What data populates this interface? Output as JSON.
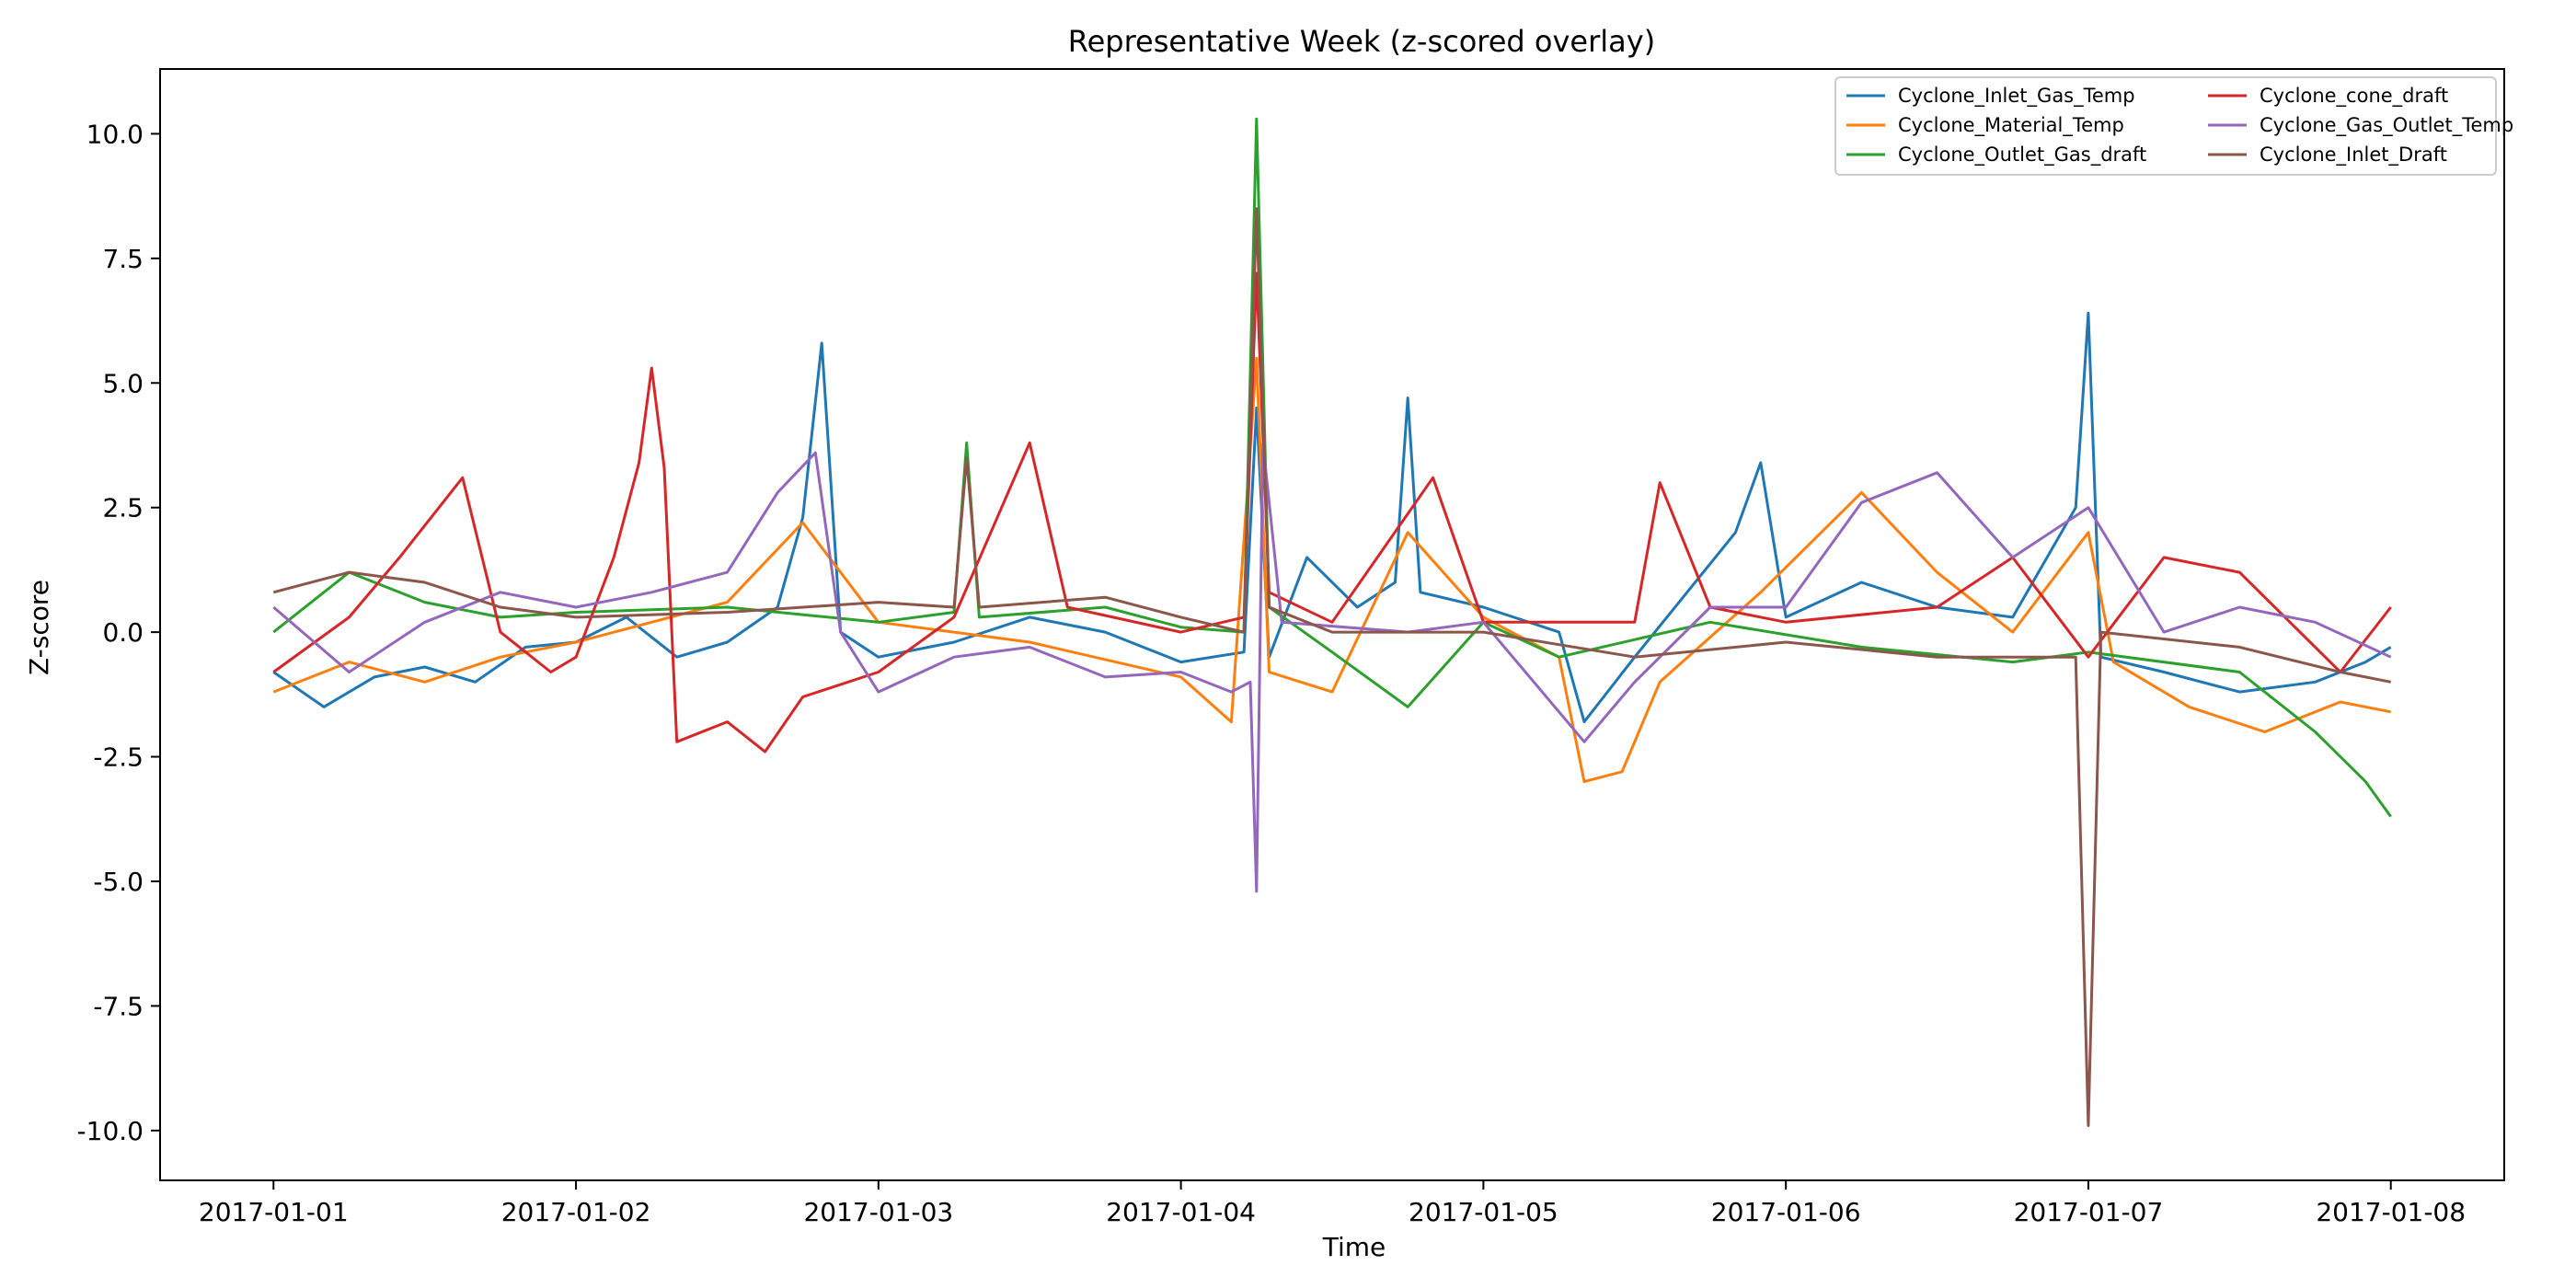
{
  "chart_data": {
    "type": "line",
    "title": "Representative Week (z-scored overlay)",
    "xlabel": "Time",
    "ylabel": "Z-score",
    "x_range": [
      "2016-12-31T15:00",
      "2017-01-08T09:00"
    ],
    "x_ticks": [
      "2017-01-01",
      "2017-01-02",
      "2017-01-03",
      "2017-01-04",
      "2017-01-05",
      "2017-01-06",
      "2017-01-07",
      "2017-01-08"
    ],
    "ylim": [
      -11,
      11.3
    ],
    "y_ticks": [
      "-10.0",
      "-7.5",
      "-5.0",
      "-2.5",
      "0.0",
      "2.5",
      "5.0",
      "7.5",
      "10.0"
    ],
    "y_tick_values": [
      -10,
      -7.5,
      -5,
      -2.5,
      0,
      2.5,
      5,
      7.5,
      10
    ],
    "grid": false,
    "legend_position": "top-right",
    "series": [
      {
        "name": "Cyclone_Inlet_Gas_Temp",
        "color": "#1f77b4",
        "points": [
          [
            "2017-01-01T00:00",
            -0.8
          ],
          [
            "2017-01-01T04:00",
            -1.5
          ],
          [
            "2017-01-01T08:00",
            -0.9
          ],
          [
            "2017-01-01T12:00",
            -0.7
          ],
          [
            "2017-01-01T16:00",
            -1.0
          ],
          [
            "2017-01-01T20:00",
            -0.3
          ],
          [
            "2017-01-02T00:00",
            -0.2
          ],
          [
            "2017-01-02T04:00",
            0.3
          ],
          [
            "2017-01-02T08:00",
            -0.5
          ],
          [
            "2017-01-02T12:00",
            -0.2
          ],
          [
            "2017-01-02T16:00",
            0.5
          ],
          [
            "2017-01-02T18:00",
            2.3
          ],
          [
            "2017-01-02T19:30",
            5.8
          ],
          [
            "2017-01-02T21:00",
            0.0
          ],
          [
            "2017-01-03T00:00",
            -0.5
          ],
          [
            "2017-01-03T06:00",
            -0.2
          ],
          [
            "2017-01-03T12:00",
            0.3
          ],
          [
            "2017-01-03T18:00",
            0.0
          ],
          [
            "2017-01-04T00:00",
            -0.6
          ],
          [
            "2017-01-04T05:00",
            -0.4
          ],
          [
            "2017-01-04T06:00",
            4.5
          ],
          [
            "2017-01-04T07:00",
            -0.5
          ],
          [
            "2017-01-04T10:00",
            1.5
          ],
          [
            "2017-01-04T14:00",
            0.5
          ],
          [
            "2017-01-04T17:00",
            1.0
          ],
          [
            "2017-01-04T18:00",
            4.7
          ],
          [
            "2017-01-04T19:00",
            0.8
          ],
          [
            "2017-01-05T00:00",
            0.5
          ],
          [
            "2017-01-05T06:00",
            0.0
          ],
          [
            "2017-01-05T08:00",
            -1.8
          ],
          [
            "2017-01-05T12:00",
            -0.5
          ],
          [
            "2017-01-05T20:00",
            2.0
          ],
          [
            "2017-01-05T22:00",
            3.4
          ],
          [
            "2017-01-06T00:00",
            0.3
          ],
          [
            "2017-01-06T06:00",
            1.0
          ],
          [
            "2017-01-06T12:00",
            0.5
          ],
          [
            "2017-01-06T18:00",
            0.3
          ],
          [
            "2017-01-06T23:00",
            2.5
          ],
          [
            "2017-01-07T00:00",
            6.4
          ],
          [
            "2017-01-07T01:00",
            -0.5
          ],
          [
            "2017-01-07T06:00",
            -0.8
          ],
          [
            "2017-01-07T12:00",
            -1.2
          ],
          [
            "2017-01-07T18:00",
            -1.0
          ],
          [
            "2017-01-07T22:00",
            -0.6
          ],
          [
            "2017-01-08T00:00",
            -0.3
          ]
        ]
      },
      {
        "name": "Cyclone_Material_Temp",
        "color": "#ff7f0e",
        "points": [
          [
            "2017-01-01T00:00",
            -1.2
          ],
          [
            "2017-01-01T06:00",
            -0.6
          ],
          [
            "2017-01-01T12:00",
            -1.0
          ],
          [
            "2017-01-01T18:00",
            -0.5
          ],
          [
            "2017-01-02T00:00",
            -0.2
          ],
          [
            "2017-01-02T06:00",
            0.2
          ],
          [
            "2017-01-02T12:00",
            0.6
          ],
          [
            "2017-01-02T18:00",
            2.2
          ],
          [
            "2017-01-03T00:00",
            0.2
          ],
          [
            "2017-01-03T12:00",
            -0.2
          ],
          [
            "2017-01-04T00:00",
            -0.9
          ],
          [
            "2017-01-04T04:00",
            -1.8
          ],
          [
            "2017-01-04T06:00",
            5.5
          ],
          [
            "2017-01-04T07:00",
            -0.8
          ],
          [
            "2017-01-04T12:00",
            -1.2
          ],
          [
            "2017-01-04T18:00",
            2.0
          ],
          [
            "2017-01-05T00:00",
            0.3
          ],
          [
            "2017-01-05T06:00",
            -0.5
          ],
          [
            "2017-01-05T08:00",
            -3.0
          ],
          [
            "2017-01-05T11:00",
            -2.8
          ],
          [
            "2017-01-05T14:00",
            -1.0
          ],
          [
            "2017-01-05T22:00",
            0.8
          ],
          [
            "2017-01-06T06:00",
            2.8
          ],
          [
            "2017-01-06T12:00",
            1.2
          ],
          [
            "2017-01-06T18:00",
            0.0
          ],
          [
            "2017-01-07T00:00",
            2.0
          ],
          [
            "2017-01-07T02:00",
            -0.6
          ],
          [
            "2017-01-07T08:00",
            -1.5
          ],
          [
            "2017-01-07T14:00",
            -2.0
          ],
          [
            "2017-01-07T20:00",
            -1.4
          ],
          [
            "2017-01-08T00:00",
            -1.6
          ]
        ]
      },
      {
        "name": "Cyclone_Outlet_Gas_draft",
        "color": "#2ca02c",
        "points": [
          [
            "2017-01-01T00:00",
            0.0
          ],
          [
            "2017-01-01T06:00",
            1.2
          ],
          [
            "2017-01-01T12:00",
            0.6
          ],
          [
            "2017-01-01T18:00",
            0.3
          ],
          [
            "2017-01-02T00:00",
            0.4
          ],
          [
            "2017-01-02T12:00",
            0.5
          ],
          [
            "2017-01-03T00:00",
            0.2
          ],
          [
            "2017-01-03T06:00",
            0.4
          ],
          [
            "2017-01-03T07:00",
            3.8
          ],
          [
            "2017-01-03T08:00",
            0.3
          ],
          [
            "2017-01-03T18:00",
            0.5
          ],
          [
            "2017-01-04T00:00",
            0.1
          ],
          [
            "2017-01-04T05:00",
            0.0
          ],
          [
            "2017-01-04T06:00",
            10.3
          ],
          [
            "2017-01-04T07:00",
            0.5
          ],
          [
            "2017-01-04T12:00",
            -0.4
          ],
          [
            "2017-01-04T18:00",
            -1.5
          ],
          [
            "2017-01-05T00:00",
            0.2
          ],
          [
            "2017-01-05T06:00",
            -0.5
          ],
          [
            "2017-01-05T18:00",
            0.2
          ],
          [
            "2017-01-06T06:00",
            -0.3
          ],
          [
            "2017-01-06T18:00",
            -0.6
          ],
          [
            "2017-01-07T00:00",
            -0.4
          ],
          [
            "2017-01-07T12:00",
            -0.8
          ],
          [
            "2017-01-07T18:00",
            -2.0
          ],
          [
            "2017-01-07T22:00",
            -3.0
          ],
          [
            "2017-01-08T00:00",
            -3.7
          ]
        ]
      },
      {
        "name": "Cyclone_cone_draft",
        "color": "#d62728",
        "points": [
          [
            "2017-01-01T00:00",
            -0.8
          ],
          [
            "2017-01-01T06:00",
            0.3
          ],
          [
            "2017-01-01T10:00",
            1.5
          ],
          [
            "2017-01-01T15:00",
            3.1
          ],
          [
            "2017-01-01T18:00",
            0.0
          ],
          [
            "2017-01-01T22:00",
            -0.8
          ],
          [
            "2017-01-02T00:00",
            -0.5
          ],
          [
            "2017-01-02T03:00",
            1.5
          ],
          [
            "2017-01-02T05:00",
            3.4
          ],
          [
            "2017-01-02T06:00",
            5.3
          ],
          [
            "2017-01-02T07:00",
            3.3
          ],
          [
            "2017-01-02T08:00",
            -2.2
          ],
          [
            "2017-01-02T12:00",
            -1.8
          ],
          [
            "2017-01-02T15:00",
            -2.4
          ],
          [
            "2017-01-02T18:00",
            -1.3
          ],
          [
            "2017-01-03T00:00",
            -0.8
          ],
          [
            "2017-01-03T06:00",
            0.3
          ],
          [
            "2017-01-03T12:00",
            3.8
          ],
          [
            "2017-01-03T15:00",
            0.5
          ],
          [
            "2017-01-04T00:00",
            0.0
          ],
          [
            "2017-01-04T05:00",
            0.3
          ],
          [
            "2017-01-04T06:00",
            7.2
          ],
          [
            "2017-01-04T07:00",
            0.8
          ],
          [
            "2017-01-04T12:00",
            0.2
          ],
          [
            "2017-01-04T20:00",
            3.1
          ],
          [
            "2017-01-05T00:00",
            0.2
          ],
          [
            "2017-01-05T12:00",
            0.2
          ],
          [
            "2017-01-05T14:00",
            3.0
          ],
          [
            "2017-01-05T18:00",
            0.5
          ],
          [
            "2017-01-06T00:00",
            0.2
          ],
          [
            "2017-01-06T12:00",
            0.5
          ],
          [
            "2017-01-06T18:00",
            1.5
          ],
          [
            "2017-01-07T00:00",
            -0.5
          ],
          [
            "2017-01-07T06:00",
            1.5
          ],
          [
            "2017-01-07T12:00",
            1.2
          ],
          [
            "2017-01-07T20:00",
            -0.8
          ],
          [
            "2017-01-08T00:00",
            0.5
          ]
        ]
      },
      {
        "name": "Cyclone_Gas_Outlet_Temp",
        "color": "#9467bd",
        "points": [
          [
            "2017-01-01T00:00",
            0.5
          ],
          [
            "2017-01-01T06:00",
            -0.8
          ],
          [
            "2017-01-01T12:00",
            0.2
          ],
          [
            "2017-01-01T18:00",
            0.8
          ],
          [
            "2017-01-02T00:00",
            0.5
          ],
          [
            "2017-01-02T06:00",
            0.8
          ],
          [
            "2017-01-02T12:00",
            1.2
          ],
          [
            "2017-01-02T16:00",
            2.8
          ],
          [
            "2017-01-02T19:00",
            3.6
          ],
          [
            "2017-01-02T21:00",
            0.0
          ],
          [
            "2017-01-03T00:00",
            -1.2
          ],
          [
            "2017-01-03T06:00",
            -0.5
          ],
          [
            "2017-01-03T12:00",
            -0.3
          ],
          [
            "2017-01-03T18:00",
            -0.9
          ],
          [
            "2017-01-04T00:00",
            -0.8
          ],
          [
            "2017-01-04T04:00",
            -1.2
          ],
          [
            "2017-01-04T05:30",
            -1.0
          ],
          [
            "2017-01-04T06:00",
            -5.2
          ],
          [
            "2017-01-04T06:30",
            3.8
          ],
          [
            "2017-01-04T08:00",
            0.2
          ],
          [
            "2017-01-04T18:00",
            0.0
          ],
          [
            "2017-01-05T00:00",
            0.2
          ],
          [
            "2017-01-05T08:00",
            -2.2
          ],
          [
            "2017-01-05T12:00",
            -1.0
          ],
          [
            "2017-01-05T18:00",
            0.5
          ],
          [
            "2017-01-06T00:00",
            0.5
          ],
          [
            "2017-01-06T06:00",
            2.6
          ],
          [
            "2017-01-06T12:00",
            3.2
          ],
          [
            "2017-01-06T18:00",
            1.5
          ],
          [
            "2017-01-07T00:00",
            2.5
          ],
          [
            "2017-01-07T06:00",
            0.0
          ],
          [
            "2017-01-07T12:00",
            0.5
          ],
          [
            "2017-01-07T18:00",
            0.2
          ],
          [
            "2017-01-08T00:00",
            -0.5
          ]
        ]
      },
      {
        "name": "Cyclone_Inlet_Draft",
        "color": "#8c564b",
        "points": [
          [
            "2017-01-01T00:00",
            0.8
          ],
          [
            "2017-01-01T06:00",
            1.2
          ],
          [
            "2017-01-01T12:00",
            1.0
          ],
          [
            "2017-01-01T18:00",
            0.5
          ],
          [
            "2017-01-02T00:00",
            0.3
          ],
          [
            "2017-01-02T12:00",
            0.4
          ],
          [
            "2017-01-03T00:00",
            0.6
          ],
          [
            "2017-01-03T06:00",
            0.5
          ],
          [
            "2017-01-03T07:00",
            3.5
          ],
          [
            "2017-01-03T08:00",
            0.5
          ],
          [
            "2017-01-03T18:00",
            0.7
          ],
          [
            "2017-01-04T00:00",
            0.3
          ],
          [
            "2017-01-04T05:00",
            0.0
          ],
          [
            "2017-01-04T06:00",
            8.5
          ],
          [
            "2017-01-04T07:00",
            0.5
          ],
          [
            "2017-01-04T12:00",
            0.0
          ],
          [
            "2017-01-05T00:00",
            0.0
          ],
          [
            "2017-01-05T12:00",
            -0.5
          ],
          [
            "2017-01-06T00:00",
            -0.2
          ],
          [
            "2017-01-06T12:00",
            -0.5
          ],
          [
            "2017-01-06T23:00",
            -0.5
          ],
          [
            "2017-01-07T00:00",
            -9.9
          ],
          [
            "2017-01-07T01:00",
            0.0
          ],
          [
            "2017-01-07T12:00",
            -0.3
          ],
          [
            "2017-01-07T20:00",
            -0.8
          ],
          [
            "2017-01-08T00:00",
            -1.0
          ]
        ]
      }
    ]
  }
}
